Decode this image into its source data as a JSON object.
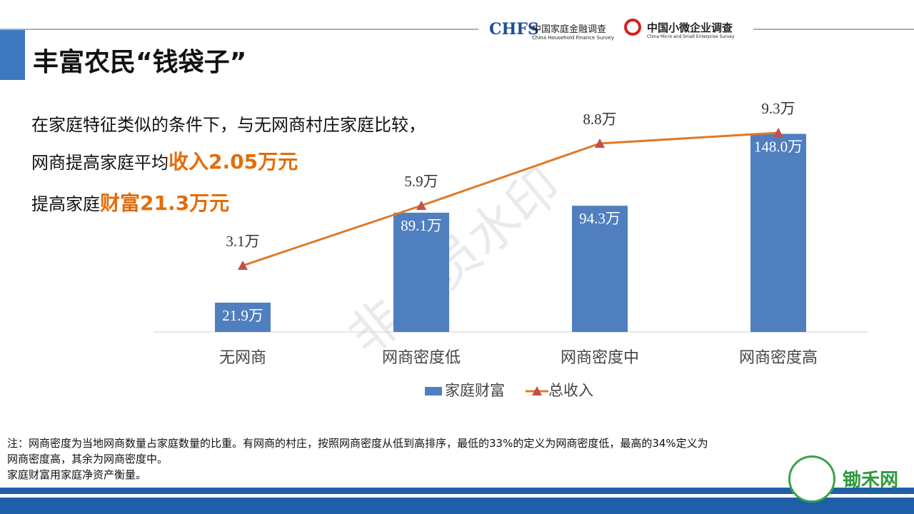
{
  "header": {
    "title": "丰富农民“钱袋子”",
    "logo1_mark": "CHFS",
    "logo1_name": "中国家庭金融调查",
    "logo1_en": "China Household Finance Survey",
    "logo2_name": "中国小微企业调查",
    "logo2_en": "China Micro and Small Enterprise Survey"
  },
  "text": {
    "line1": "在家庭特征类似的条件下，与无网商村庄家庭比较，",
    "line2_prefix": "网商提高家庭平均",
    "line2_highlight": "收入2.05万元",
    "line3_prefix": "提高家庭",
    "line3_highlight": "财富21.3万元"
  },
  "chart_data": {
    "type": "bar-line",
    "categories": [
      "无网商",
      "网商密度低",
      "网商密度中",
      "网商密度高"
    ],
    "series": [
      {
        "name": "家庭财富",
        "type": "bar",
        "color": "#4f7fbf",
        "values": [
          21.9,
          89.1,
          94.3,
          148.0
        ],
        "value_labels": [
          "21.9万",
          "89.1万",
          "94.3万",
          "148.0万"
        ]
      },
      {
        "name": "总收入",
        "type": "line",
        "axis": "y2",
        "color": "#e07a26",
        "values": [
          3.1,
          5.9,
          8.8,
          9.3
        ],
        "value_labels": [
          "3.1万",
          "5.9万",
          "8.8万",
          "9.3万"
        ]
      }
    ],
    "ylim": [
      0,
      160
    ],
    "y2lim": [
      0,
      10
    ],
    "legend": "bottom"
  },
  "notes": [
    "注：网商密度为当地网商数量占家庭数量的比重。有网商的村庄，按照网商密度从低到高排序，最低的33%的定义为网商密度低，最高的34%定义为",
    "网商密度高，其余为网商密度中。",
    "家庭财富用家庭净资产衡量。"
  ],
  "watermark": "非会员水印",
  "footer_logo": "锄禾网"
}
